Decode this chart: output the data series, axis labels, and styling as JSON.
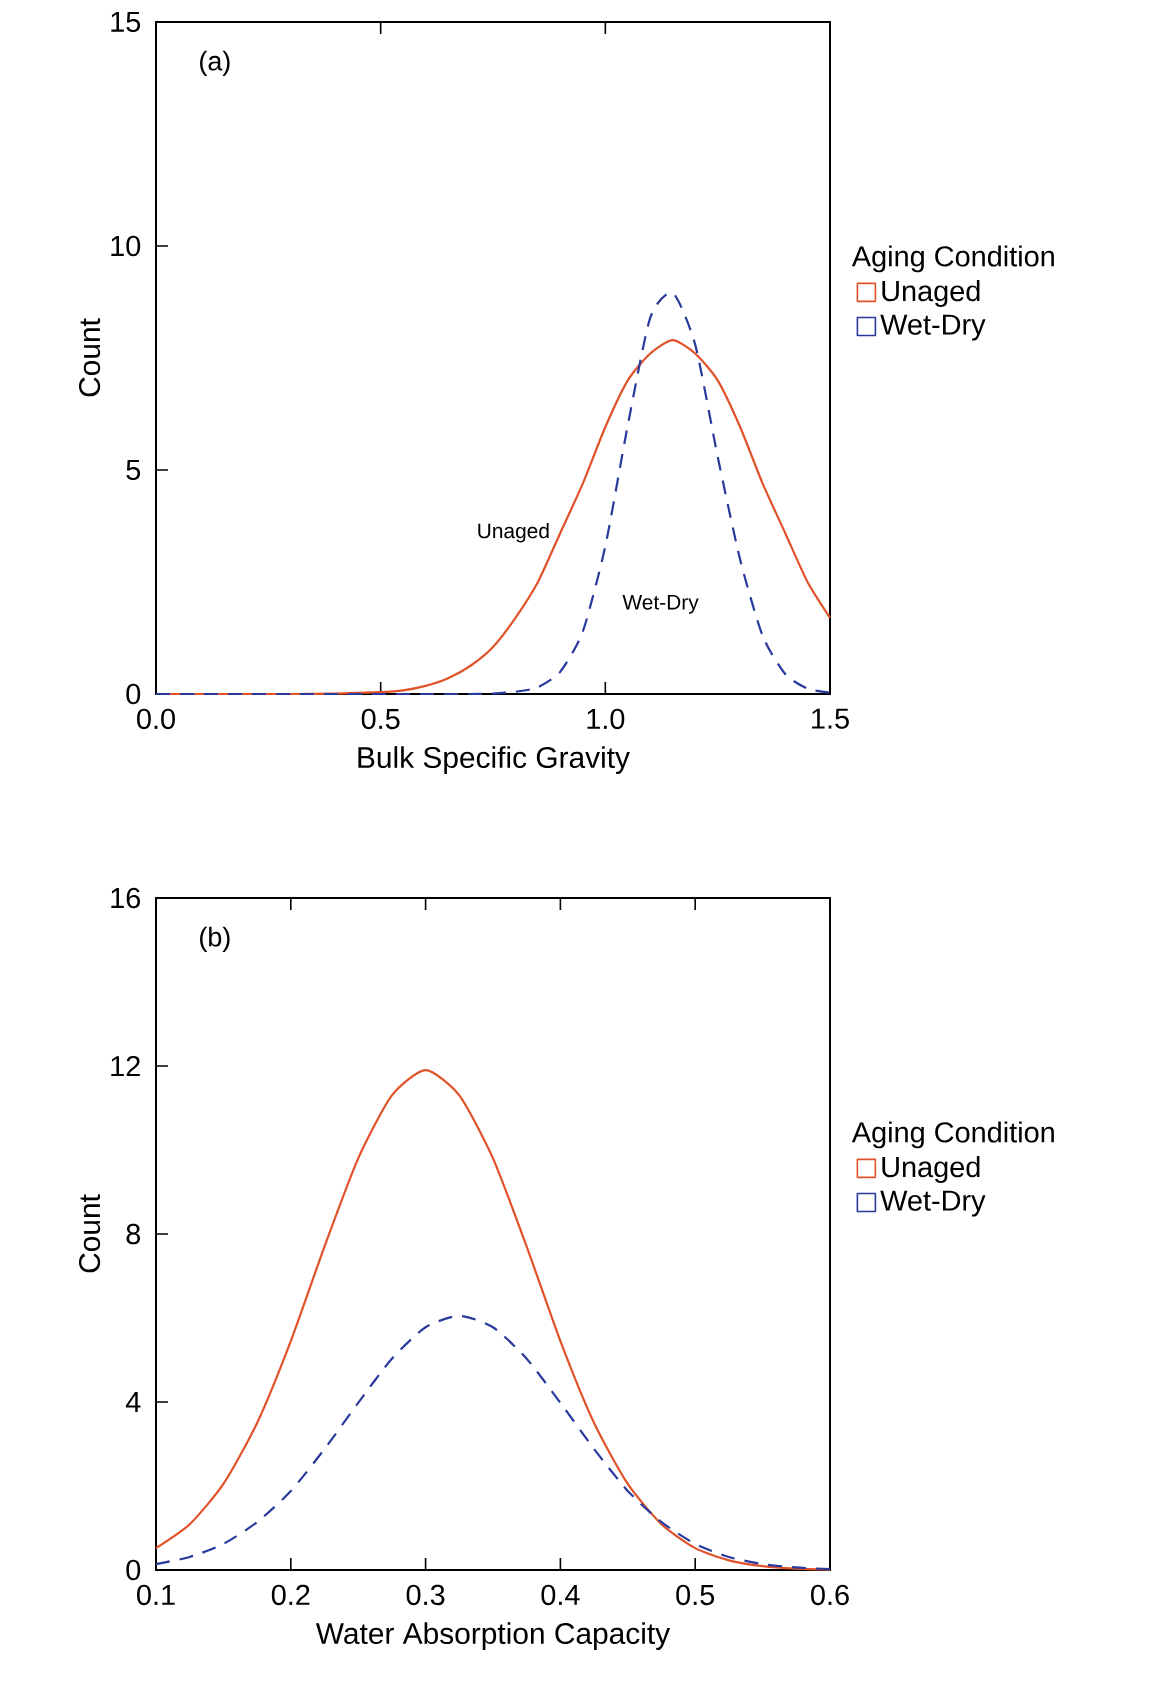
{
  "chart_data": [
    {
      "type": "line",
      "title": "(a)",
      "xlabel": "Bulk Specific Gravity",
      "ylabel": "Count",
      "legend_title": "Aging Condition",
      "legend": "right",
      "xlim": [
        0,
        1.5
      ],
      "ylim": [
        0,
        15
      ],
      "xticks": [
        {
          "value": 0,
          "label": "0.0"
        },
        {
          "value": 0.5,
          "label": "0.5"
        },
        {
          "value": 1,
          "label": "1.0"
        },
        {
          "value": 1.5,
          "label": "1.5"
        }
      ],
      "yticks": [
        0,
        5,
        10,
        15
      ],
      "series": [
        {
          "name": "Unaged",
          "color": "#e0522a",
          "line_style": "solid",
          "x": [
            0,
            0.1,
            0.2,
            0.3,
            0.4,
            0.5,
            0.55,
            0.6,
            0.65,
            0.7,
            0.75,
            0.8,
            0.85,
            0.9,
            0.95,
            1.0,
            1.05,
            1.1,
            1.15,
            1.2,
            1.25,
            1.3,
            1.35,
            1.4,
            1.45,
            1.5
          ],
          "values": [
            0,
            0,
            0,
            0,
            0.01,
            0.04,
            0.08,
            0.18,
            0.35,
            0.63,
            1.05,
            1.7,
            2.5,
            3.6,
            4.7,
            5.96,
            7.0,
            7.6,
            7.9,
            7.6,
            7.0,
            5.96,
            4.7,
            3.6,
            2.5,
            1.7
          ]
        },
        {
          "name": "Wet-Dry",
          "color": "#2a3a9c",
          "line_style": "dashed",
          "x": [
            0,
            0.1,
            0.2,
            0.3,
            0.4,
            0.5,
            0.6,
            0.7,
            0.75,
            0.8,
            0.85,
            0.9,
            0.95,
            1.0,
            1.05,
            1.1,
            1.15,
            1.2,
            1.25,
            1.3,
            1.35,
            1.4,
            1.45,
            1.5
          ],
          "values": [
            0,
            0,
            0,
            0,
            0,
            0,
            0,
            0,
            0.01,
            0.05,
            0.15,
            0.5,
            1.4,
            3.3,
            6.0,
            8.4,
            8.95,
            7.8,
            5.3,
            3.0,
            1.3,
            0.45,
            0.12,
            0.03
          ]
        }
      ],
      "annotations": [
        {
          "text": "Unaged",
          "x": 0.9,
          "y": 3.6
        },
        {
          "text": "Wet-Dry",
          "x": 1.32,
          "y": 2.0
        }
      ]
    },
    {
      "type": "line",
      "title": "(b)",
      "xlabel": "Water Absorption Capacity",
      "ylabel": "Count",
      "legend_title": "Aging Condition",
      "legend": "right",
      "xlim": [
        0.1,
        0.6
      ],
      "ylim": [
        0,
        16
      ],
      "xticks": [
        0.1,
        0.2,
        0.3,
        0.4,
        0.5,
        0.6
      ],
      "yticks": [
        0,
        4,
        8,
        12,
        16
      ],
      "series": [
        {
          "name": "Unaged",
          "color": "#e0522a",
          "line_style": "solid",
          "x": [
            0.1,
            0.125,
            0.15,
            0.175,
            0.2,
            0.225,
            0.25,
            0.275,
            0.3,
            0.325,
            0.35,
            0.375,
            0.4,
            0.425,
            0.45,
            0.475,
            0.5,
            0.525,
            0.55,
            0.575,
            0.6
          ],
          "values": [
            0.52,
            1.09,
            2.05,
            3.5,
            5.45,
            7.7,
            9.8,
            11.3,
            11.9,
            11.3,
            9.8,
            7.7,
            5.45,
            3.5,
            2.05,
            1.09,
            0.52,
            0.23,
            0.09,
            0.03,
            0.01
          ]
        },
        {
          "name": "Wet-Dry",
          "color": "#2a3a9c",
          "line_style": "dashed",
          "x": [
            0.1,
            0.125,
            0.15,
            0.175,
            0.2,
            0.225,
            0.25,
            0.275,
            0.3,
            0.325,
            0.35,
            0.375,
            0.4,
            0.425,
            0.45,
            0.475,
            0.5,
            0.525,
            0.55,
            0.575,
            0.6
          ],
          "values": [
            0.14,
            0.31,
            0.62,
            1.14,
            1.88,
            2.88,
            3.98,
            5.03,
            5.78,
            6.05,
            5.78,
            5.03,
            3.98,
            2.88,
            1.88,
            1.14,
            0.62,
            0.31,
            0.14,
            0.06,
            0.02
          ]
        }
      ]
    }
  ]
}
